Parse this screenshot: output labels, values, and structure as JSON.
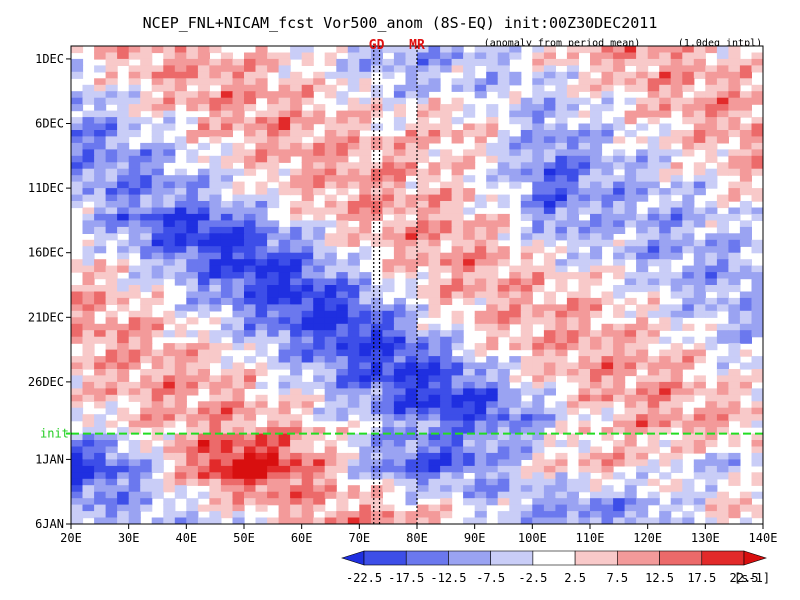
{
  "chart_data": {
    "type": "heatmap",
    "title": "NCEP_FNL+NICAM_fcst Vor500_anom (8S-EQ) init:00Z30DEC2011",
    "subtitle_left": "(anomaly from period mean)",
    "subtitle_right": "(1.0deg intpl)",
    "x_ticks": [
      "20E",
      "30E",
      "40E",
      "50E",
      "60E",
      "70E",
      "80E",
      "90E",
      "100E",
      "110E",
      "120E",
      "130E",
      "140E"
    ],
    "xlim": [
      20,
      140
    ],
    "y_ticks": [
      "1DEC",
      "6DEC",
      "11DEC",
      "16DEC",
      "21DEC",
      "26DEC",
      "1JAN",
      "6JAN"
    ],
    "y_tick_days": [
      0,
      5,
      10,
      15,
      20,
      25,
      31,
      36
    ],
    "ylim_days": [
      -1,
      36
    ],
    "init_label": "init",
    "init_day": 29,
    "markers": [
      {
        "label": "GD",
        "lon": 72.5
      },
      {
        "label": "GD_line2",
        "lon": 73.5
      },
      {
        "label": "MR",
        "lon": 80
      }
    ],
    "marker_labels": [
      "GD",
      "MR"
    ],
    "colorbar": {
      "levels": [
        "-22.5",
        "-17.5",
        "-12.5",
        "-7.5",
        "-2.5",
        "2.5",
        "7.5",
        "12.5",
        "17.5",
        "22.5"
      ],
      "colors": [
        "#1f2fe0",
        "#3d4ee8",
        "#6b78ee",
        "#9aa3f2",
        "#c9cdf7",
        "#ffffff",
        "#f8c9c9",
        "#f39a9a",
        "#ec6a6a",
        "#e22a2a",
        "#d80f0f"
      ],
      "unit": "[s-1]"
    }
  }
}
